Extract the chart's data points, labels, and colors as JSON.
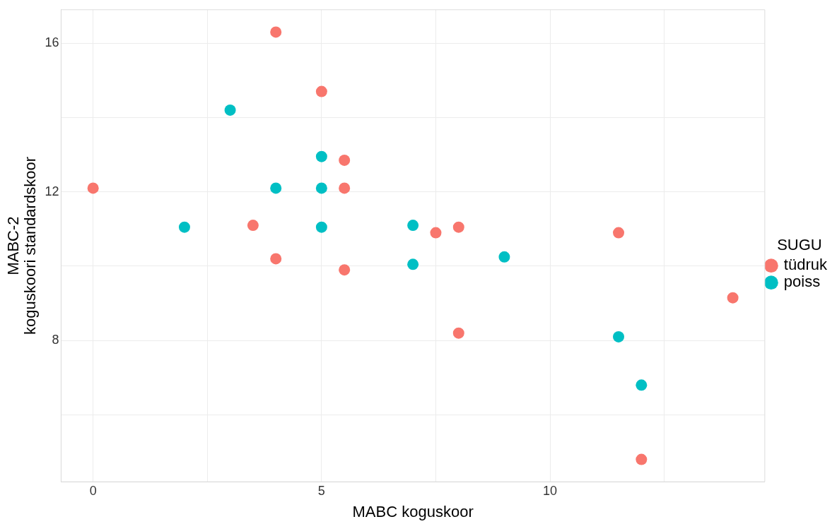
{
  "chart_data": {
    "type": "scatter",
    "xlabel": "MABC koguskoor",
    "ylabel": "MABC-2\nkoguskoori standardskoor",
    "legend_title": "SUGU",
    "series": [
      {
        "name": "tüdruk",
        "color": "#f8766d",
        "x": [
          4,
          5,
          5.5,
          5.5,
          0,
          3.5,
          4,
          5.5,
          7.5,
          8,
          11.5,
          14,
          8,
          12
        ],
        "values": [
          16.3,
          14.7,
          12.85,
          12.1,
          12.1,
          11.1,
          10.2,
          9.9,
          10.9,
          11.05,
          10.9,
          9.15,
          8.2,
          4.8
        ]
      },
      {
        "name": "poiss",
        "color": "#00bfc4",
        "x": [
          3,
          5,
          4,
          5,
          2,
          5,
          7,
          7,
          9,
          11.5,
          12
        ],
        "values": [
          14.2,
          12.95,
          12.1,
          12.1,
          11.05,
          11.05,
          11.1,
          10.05,
          10.25,
          8.1,
          6.8
        ]
      }
    ],
    "xlim": [
      -0.7,
      14.7
    ],
    "ylim": [
      4.2,
      16.9
    ],
    "xticks": [
      0,
      {
        "value": 2.5,
        "label": null
      },
      5,
      {
        "value": 7.5,
        "label": null
      },
      10,
      {
        "value": 12.5,
        "label": null
      }
    ],
    "yticks": [
      {
        "value": 6,
        "label": null
      },
      8,
      {
        "value": 10,
        "label": null
      },
      12,
      {
        "value": 14,
        "label": null
      },
      16
    ],
    "grid": true,
    "legend": "right",
    "marker": "circle"
  }
}
